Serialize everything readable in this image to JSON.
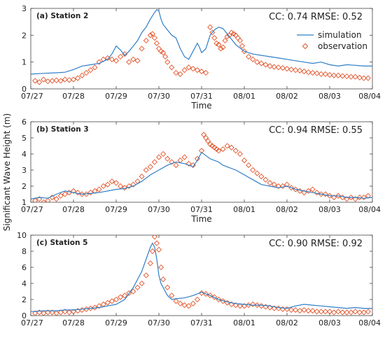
{
  "ylabel": "Significant Wave Height (m)",
  "legend": {
    "simulation": "simulation",
    "observation": "observation"
  },
  "colors": {
    "simulation": "#2f7fc8",
    "observation": "#e2542a",
    "axis": "#444444",
    "grid": "#d9d9d9"
  },
  "chart_data": [
    {
      "type": "line",
      "title": "(a) Station 2",
      "stats": "CC: 0.74  RMSE: 0.52",
      "xlabel": "Time",
      "xlim": [
        0,
        8
      ],
      "xtick_labels": [
        "07/27",
        "07/28",
        "07/29",
        "07/30",
        "07/31",
        "08/01",
        "08/02",
        "08/03",
        "08/04"
      ],
      "ylim": [
        0,
        3
      ],
      "yticks": [
        0,
        1,
        2,
        3
      ],
      "legend": true,
      "series": [
        {
          "name": "simulation",
          "style": "line",
          "x": [
            0,
            0.3,
            0.6,
            0.8,
            1.0,
            1.2,
            1.4,
            1.6,
            1.8,
            1.9,
            2.0,
            2.1,
            2.2,
            2.3,
            2.4,
            2.5,
            2.6,
            2.7,
            2.8,
            2.9,
            2.95,
            3.0,
            3.05,
            3.1,
            3.2,
            3.3,
            3.4,
            3.5,
            3.6,
            3.7,
            3.8,
            3.9,
            3.95,
            4.0,
            4.1,
            4.2,
            4.3,
            4.4,
            4.5,
            4.6,
            4.8,
            5.0,
            5.2,
            5.4,
            5.6,
            5.8,
            6.0,
            6.2,
            6.4,
            6.6,
            6.8,
            7.0,
            7.2,
            7.4,
            7.6,
            7.8,
            8.0
          ],
          "y": [
            0.55,
            0.58,
            0.6,
            0.62,
            0.72,
            0.85,
            0.9,
            0.95,
            1.1,
            1.3,
            1.6,
            1.45,
            1.25,
            1.4,
            1.6,
            1.8,
            2.1,
            2.3,
            2.6,
            2.85,
            2.95,
            2.9,
            2.6,
            2.4,
            2.2,
            2.0,
            1.9,
            1.5,
            1.2,
            1.1,
            1.4,
            1.7,
            1.55,
            1.35,
            1.5,
            2.0,
            2.2,
            2.3,
            2.25,
            2.05,
            1.65,
            1.4,
            1.3,
            1.25,
            1.2,
            1.15,
            1.1,
            1.05,
            1.0,
            0.95,
            1.0,
            0.9,
            0.85,
            0.9,
            0.88,
            0.85,
            0.85
          ]
        },
        {
          "name": "observation",
          "style": "markers",
          "x": [
            0.1,
            0.2,
            0.3,
            0.4,
            0.5,
            0.6,
            0.7,
            0.8,
            0.9,
            1.0,
            1.1,
            1.2,
            1.3,
            1.4,
            1.5,
            1.6,
            1.7,
            1.8,
            1.9,
            2.0,
            2.1,
            2.2,
            2.3,
            2.4,
            2.5,
            2.6,
            2.7,
            2.8,
            2.85,
            2.9,
            2.95,
            3.0,
            3.05,
            3.1,
            3.15,
            3.2,
            3.3,
            3.4,
            3.5,
            3.6,
            3.7,
            3.8,
            3.9,
            4.0,
            4.1,
            4.2,
            4.25,
            4.3,
            4.35,
            4.4,
            4.45,
            4.5,
            4.55,
            4.6,
            4.65,
            4.7,
            4.75,
            4.8,
            4.85,
            4.9,
            4.95,
            5.0,
            5.1,
            5.2,
            5.3,
            5.4,
            5.5,
            5.6,
            5.7,
            5.8,
            5.9,
            6.0,
            6.1,
            6.2,
            6.3,
            6.4,
            6.5,
            6.6,
            6.7,
            6.8,
            6.9,
            7.0,
            7.1,
            7.2,
            7.3,
            7.4,
            7.5,
            7.6,
            7.7,
            7.8,
            7.9
          ],
          "y": [
            0.3,
            0.25,
            0.35,
            0.28,
            0.3,
            0.32,
            0.3,
            0.35,
            0.33,
            0.35,
            0.4,
            0.5,
            0.6,
            0.7,
            0.8,
            1.0,
            1.1,
            1.15,
            1.1,
            1.05,
            1.2,
            1.3,
            1.0,
            1.1,
            1.05,
            1.5,
            1.8,
            2.0,
            2.05,
            1.9,
            1.7,
            1.5,
            1.4,
            1.35,
            1.2,
            1.0,
            0.8,
            0.6,
            0.55,
            0.7,
            0.8,
            0.75,
            0.7,
            0.65,
            0.6,
            2.3,
            2.1,
            1.9,
            1.7,
            1.65,
            1.5,
            1.55,
            1.8,
            1.95,
            2.0,
            2.1,
            2.05,
            2.0,
            1.9,
            1.8,
            1.6,
            1.4,
            1.2,
            1.1,
            1.0,
            0.95,
            0.9,
            0.85,
            0.82,
            0.8,
            0.78,
            0.75,
            0.72,
            0.7,
            0.68,
            0.65,
            0.62,
            0.6,
            0.58,
            0.55,
            0.55,
            0.52,
            0.5,
            0.5,
            0.48,
            0.47,
            0.45,
            0.45,
            0.42,
            0.4,
            0.4
          ]
        }
      ]
    },
    {
      "type": "line",
      "title": "(b) Station 3",
      "stats": "CC: 0.94  RMSE: 0.55",
      "xlabel": "Time",
      "xlim": [
        0,
        8
      ],
      "xtick_labels": [
        "07/27",
        "07/28",
        "07/29",
        "07/30",
        "07/31",
        "08/01",
        "08/02",
        "08/03",
        "08/04"
      ],
      "ylim": [
        1,
        6
      ],
      "yticks": [
        1,
        2,
        3,
        4,
        5,
        6
      ],
      "legend": false,
      "series": [
        {
          "name": "simulation",
          "style": "line",
          "x": [
            0,
            0.2,
            0.4,
            0.6,
            0.8,
            1.0,
            1.2,
            1.4,
            1.6,
            1.8,
            2.0,
            2.2,
            2.4,
            2.6,
            2.8,
            3.0,
            3.2,
            3.4,
            3.6,
            3.8,
            3.9,
            4.0,
            4.1,
            4.2,
            4.3,
            4.4,
            4.5,
            4.6,
            4.8,
            5.0,
            5.2,
            5.4,
            5.6,
            5.8,
            6.0,
            6.2,
            6.4,
            6.6,
            6.8,
            7.0,
            7.2,
            7.4,
            7.6,
            7.8,
            8.0
          ],
          "y": [
            1.2,
            1.3,
            1.25,
            1.5,
            1.7,
            1.6,
            1.5,
            1.55,
            1.6,
            1.7,
            1.8,
            1.85,
            2.0,
            2.3,
            2.7,
            3.0,
            3.3,
            3.5,
            3.4,
            3.2,
            3.6,
            4.1,
            3.9,
            3.7,
            3.6,
            3.5,
            3.3,
            3.2,
            3.0,
            2.7,
            2.4,
            2.1,
            2.0,
            1.9,
            2.0,
            1.8,
            1.7,
            1.6,
            1.5,
            1.4,
            1.4,
            1.3,
            1.3,
            1.25,
            1.3
          ]
        },
        {
          "name": "observation",
          "style": "markers",
          "x": [
            0.1,
            0.2,
            0.3,
            0.4,
            0.5,
            0.6,
            0.7,
            0.8,
            0.9,
            1.0,
            1.1,
            1.2,
            1.3,
            1.4,
            1.5,
            1.6,
            1.7,
            1.8,
            1.9,
            2.0,
            2.1,
            2.2,
            2.3,
            2.4,
            2.5,
            2.6,
            2.7,
            2.8,
            2.9,
            3.0,
            3.1,
            3.2,
            3.3,
            3.4,
            3.5,
            3.6,
            3.7,
            3.8,
            3.9,
            4.0,
            4.05,
            4.1,
            4.15,
            4.2,
            4.25,
            4.3,
            4.35,
            4.4,
            4.5,
            4.6,
            4.7,
            4.8,
            4.9,
            5.0,
            5.1,
            5.2,
            5.3,
            5.4,
            5.5,
            5.6,
            5.7,
            5.8,
            5.9,
            6.0,
            6.1,
            6.2,
            6.3,
            6.4,
            6.5,
            6.6,
            6.7,
            6.8,
            6.9,
            7.0,
            7.1,
            7.2,
            7.3,
            7.4,
            7.5,
            7.6,
            7.7,
            7.8,
            7.9
          ],
          "y": [
            1.1,
            1.2,
            1.0,
            1.1,
            1.3,
            1.2,
            1.4,
            1.5,
            1.6,
            1.7,
            1.6,
            1.5,
            1.5,
            1.6,
            1.7,
            1.8,
            2.0,
            2.1,
            2.3,
            2.2,
            2.0,
            1.9,
            2.0,
            2.1,
            2.3,
            2.6,
            3.0,
            3.2,
            3.5,
            3.8,
            4.0,
            3.7,
            3.5,
            3.3,
            3.6,
            3.8,
            3.4,
            3.3,
            3.7,
            4.2,
            5.2,
            5.0,
            4.8,
            4.6,
            4.5,
            4.4,
            4.3,
            4.2,
            4.3,
            4.5,
            4.4,
            4.2,
            4.0,
            3.6,
            3.3,
            3.0,
            2.8,
            2.6,
            2.4,
            2.2,
            2.1,
            2.0,
            2.0,
            2.1,
            1.9,
            1.8,
            1.7,
            1.6,
            1.7,
            1.8,
            1.6,
            1.5,
            1.5,
            1.4,
            1.3,
            1.4,
            1.3,
            1.2,
            1.3,
            1.2,
            1.3,
            1.3,
            1.4
          ]
        }
      ]
    },
    {
      "type": "line",
      "title": "(c) Station 5",
      "stats": "CC: 0.90  RMSE: 0.92",
      "xlabel": "",
      "xlim": [
        0,
        8
      ],
      "xtick_labels": [
        "07/27",
        "07/28",
        "07/29",
        "07/30",
        "07/31",
        "08/01",
        "08/02",
        "08/03",
        "08/04"
      ],
      "ylim": [
        0,
        10
      ],
      "yticks": [
        0,
        2,
        4,
        6,
        8,
        10
      ],
      "legend": false,
      "series": [
        {
          "name": "simulation",
          "style": "line",
          "x": [
            0,
            0.3,
            0.6,
            0.8,
            1.0,
            1.2,
            1.4,
            1.6,
            1.8,
            2.0,
            2.2,
            2.4,
            2.6,
            2.7,
            2.8,
            2.85,
            2.9,
            2.95,
            3.0,
            3.05,
            3.1,
            3.2,
            3.3,
            3.4,
            3.6,
            3.8,
            4.0,
            4.2,
            4.4,
            4.6,
            4.8,
            5.0,
            5.2,
            5.4,
            5.6,
            5.8,
            6.0,
            6.2,
            6.4,
            6.6,
            6.8,
            7.0,
            7.2,
            7.4,
            7.6,
            7.8,
            8.0
          ],
          "y": [
            0.5,
            0.6,
            0.6,
            0.7,
            0.7,
            0.8,
            0.9,
            1.0,
            1.2,
            1.4,
            2.0,
            3.5,
            5.5,
            7.0,
            8.5,
            9.0,
            8.5,
            7.0,
            5.0,
            4.0,
            3.5,
            2.5,
            2.0,
            2.1,
            2.2,
            2.5,
            2.9,
            2.5,
            2.0,
            1.7,
            1.5,
            1.4,
            1.3,
            1.3,
            1.2,
            1.0,
            0.9,
            1.2,
            1.4,
            1.3,
            1.2,
            1.1,
            1.0,
            0.9,
            1.0,
            0.9,
            0.9
          ]
        },
        {
          "name": "observation",
          "style": "markers",
          "x": [
            0.1,
            0.2,
            0.3,
            0.4,
            0.5,
            0.6,
            0.7,
            0.8,
            0.9,
            1.0,
            1.1,
            1.2,
            1.3,
            1.4,
            1.5,
            1.6,
            1.7,
            1.8,
            1.9,
            2.0,
            2.1,
            2.2,
            2.3,
            2.4,
            2.5,
            2.6,
            2.7,
            2.8,
            2.85,
            2.9,
            2.95,
            3.0,
            3.05,
            3.1,
            3.2,
            3.3,
            3.4,
            3.5,
            3.6,
            3.7,
            3.8,
            3.9,
            4.0,
            4.1,
            4.2,
            4.3,
            4.4,
            4.5,
            4.6,
            4.7,
            4.8,
            4.9,
            5.0,
            5.1,
            5.2,
            5.3,
            5.4,
            5.5,
            5.6,
            5.7,
            5.8,
            5.9,
            6.0,
            6.1,
            6.2,
            6.3,
            6.4,
            6.5,
            6.6,
            6.7,
            6.8,
            6.9,
            7.0,
            7.1,
            7.2,
            7.3,
            7.4,
            7.5,
            7.6,
            7.7,
            7.8,
            7.9
          ],
          "y": [
            0.3,
            0.4,
            0.3,
            0.4,
            0.4,
            0.3,
            0.4,
            0.5,
            0.4,
            0.5,
            0.6,
            0.7,
            0.8,
            0.9,
            1.0,
            1.2,
            1.4,
            1.6,
            1.8,
            2.0,
            2.3,
            2.5,
            2.8,
            3.0,
            3.5,
            4.0,
            5.0,
            6.5,
            8.0,
            9.8,
            9.0,
            8.2,
            6.0,
            4.5,
            3.5,
            2.5,
            1.8,
            1.5,
            1.3,
            1.2,
            1.5,
            2.0,
            2.8,
            2.7,
            2.5,
            2.3,
            2.0,
            1.8,
            1.6,
            1.4,
            1.3,
            1.2,
            1.2,
            1.3,
            1.4,
            1.3,
            1.2,
            1.1,
            1.0,
            0.9,
            0.9,
            0.8,
            0.8,
            0.7,
            0.7,
            0.6,
            0.7,
            0.6,
            0.6,
            0.5,
            0.5,
            0.5,
            0.5,
            0.4,
            0.5,
            0.4,
            0.4,
            0.4,
            0.5,
            0.4,
            0.4,
            0.5
          ]
        }
      ]
    }
  ]
}
